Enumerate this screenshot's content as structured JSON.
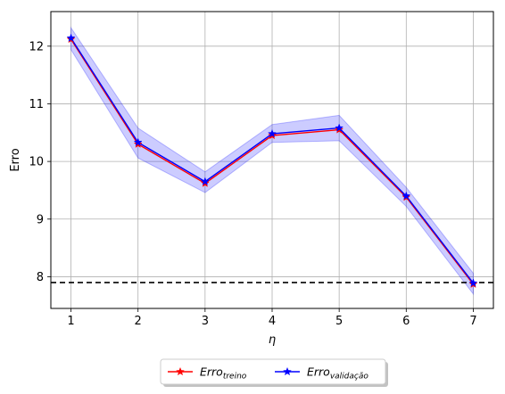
{
  "chart_data": {
    "type": "line",
    "xlabel": "η",
    "ylabel": "Erro",
    "x": [
      1,
      2,
      3,
      4,
      5,
      6,
      7
    ],
    "xlim": [
      0.7,
      7.3
    ],
    "ylim": [
      7.45,
      12.6
    ],
    "xticks": [
      "1",
      "2",
      "3",
      "4",
      "5",
      "6",
      "7"
    ],
    "yticks": [
      "8",
      "9",
      "10",
      "11",
      "12"
    ],
    "grid": true,
    "legend_position": "bottom-center",
    "series": [
      {
        "name": "Erro",
        "name_subscript": "treino",
        "color": "#ff0000",
        "marker": "star",
        "values": [
          12.12,
          10.3,
          9.62,
          10.45,
          10.55,
          9.38,
          7.87
        ]
      },
      {
        "name": "Erro",
        "name_subscript": "validação",
        "color": "#0000ff",
        "marker": "star",
        "values": [
          12.14,
          10.33,
          9.65,
          10.48,
          10.58,
          9.4,
          7.89
        ],
        "band_upper": [
          12.32,
          10.58,
          9.82,
          10.64,
          10.8,
          9.55,
          8.06
        ],
        "band_lower": [
          11.94,
          10.06,
          9.46,
          10.33,
          10.36,
          9.22,
          7.7
        ],
        "band_color": "#0000ff"
      }
    ],
    "reference_line": {
      "y": 7.9,
      "color": "#000000",
      "style": "dashed"
    }
  }
}
